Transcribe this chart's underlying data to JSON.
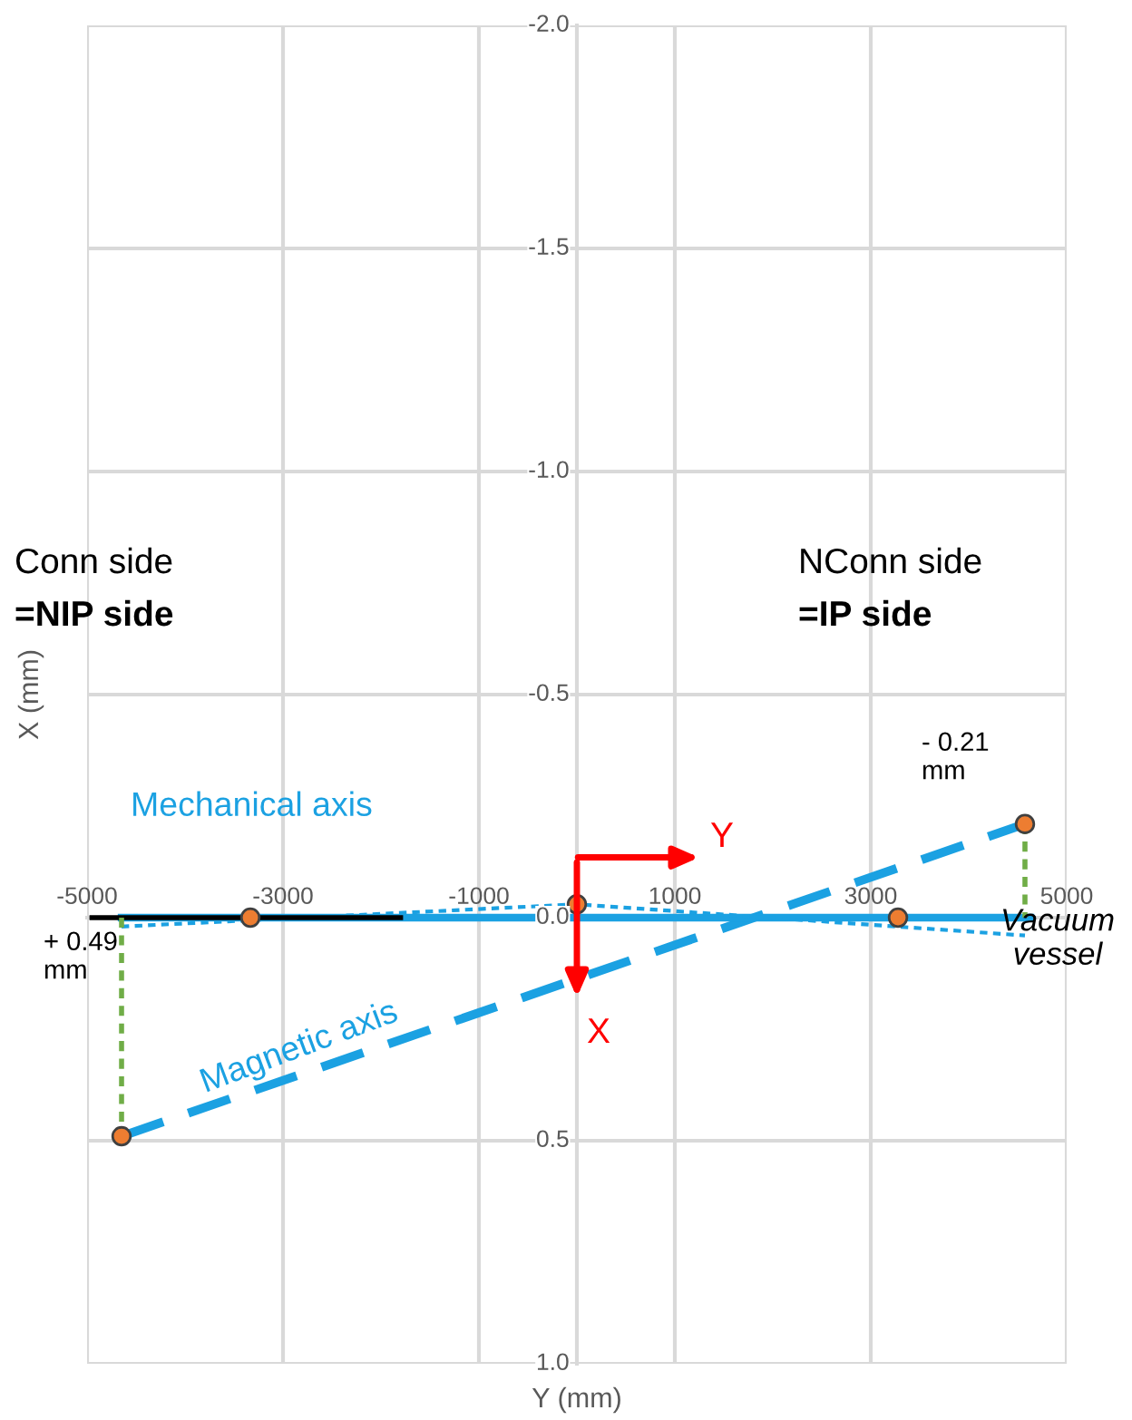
{
  "chart_data": {
    "type": "line",
    "xlabel": "Y (mm)",
    "ylabel": "X (mm)",
    "xlim": [
      -5000,
      5000
    ],
    "xticks": [
      -5000,
      -3000,
      -1000,
      1000,
      3000,
      5000
    ],
    "ylim": [
      1.0,
      -2.0
    ],
    "yticks": [
      {
        "value": -2.0,
        "label": "-2.0"
      },
      {
        "value": -1.5,
        "label": "-1.5"
      },
      {
        "value": -1.0,
        "label": "-1.0"
      },
      {
        "value": -0.5,
        "label": "-0.5"
      },
      {
        "value": 0.0,
        "label": "0.0"
      },
      {
        "value": 0.5,
        "label": "0.5"
      },
      {
        "value": 1.0,
        "label": "1.0"
      }
    ],
    "grid": true,
    "series": [
      {
        "name": "Magnetic axis",
        "color": "#1ba1e2",
        "line_style": "dashed",
        "x": [
          -4648,
          4574
        ],
        "values": [
          0.49,
          -0.21
        ]
      },
      {
        "name": "Mechanical axis",
        "color": "#1ba1e2",
        "line_style": "solid",
        "x": [
          -4648,
          4630
        ],
        "values": [
          0.0,
          0.0
        ]
      },
      {
        "color": "#1ba1e2",
        "line_style": "dotted",
        "x": [
          -4648,
          0,
          4574
        ],
        "values": [
          0.02,
          -0.03,
          0.04
        ]
      },
      {
        "color": "#000000",
        "line_style": "solid",
        "x": [
          -4950,
          -1800
        ],
        "values": [
          0.0,
          0.0
        ]
      },
      {
        "color": "#70ad47",
        "line_style": "dotted",
        "x": [
          -4648,
          -4648
        ],
        "values": [
          0.0,
          0.49
        ]
      },
      {
        "color": "#70ad47",
        "line_style": "dotted",
        "x": [
          4574,
          4574
        ],
        "values": [
          -0.21,
          0.0
        ]
      },
      {
        "type": "scatter",
        "color": "#ed7d31",
        "marker": "circle",
        "x": [
          -4648,
          -3333,
          0,
          3278,
          4574
        ],
        "values": [
          0.49,
          0.0,
          -0.03,
          0.0,
          -0.21
        ]
      }
    ],
    "annotations": [
      "Conn side",
      "=NIP side",
      "NConn side",
      "=IP side",
      "+ 0.49\nmm",
      "- 0.21\nmm",
      "Vacuum\nvessel",
      "Y",
      "X"
    ]
  }
}
